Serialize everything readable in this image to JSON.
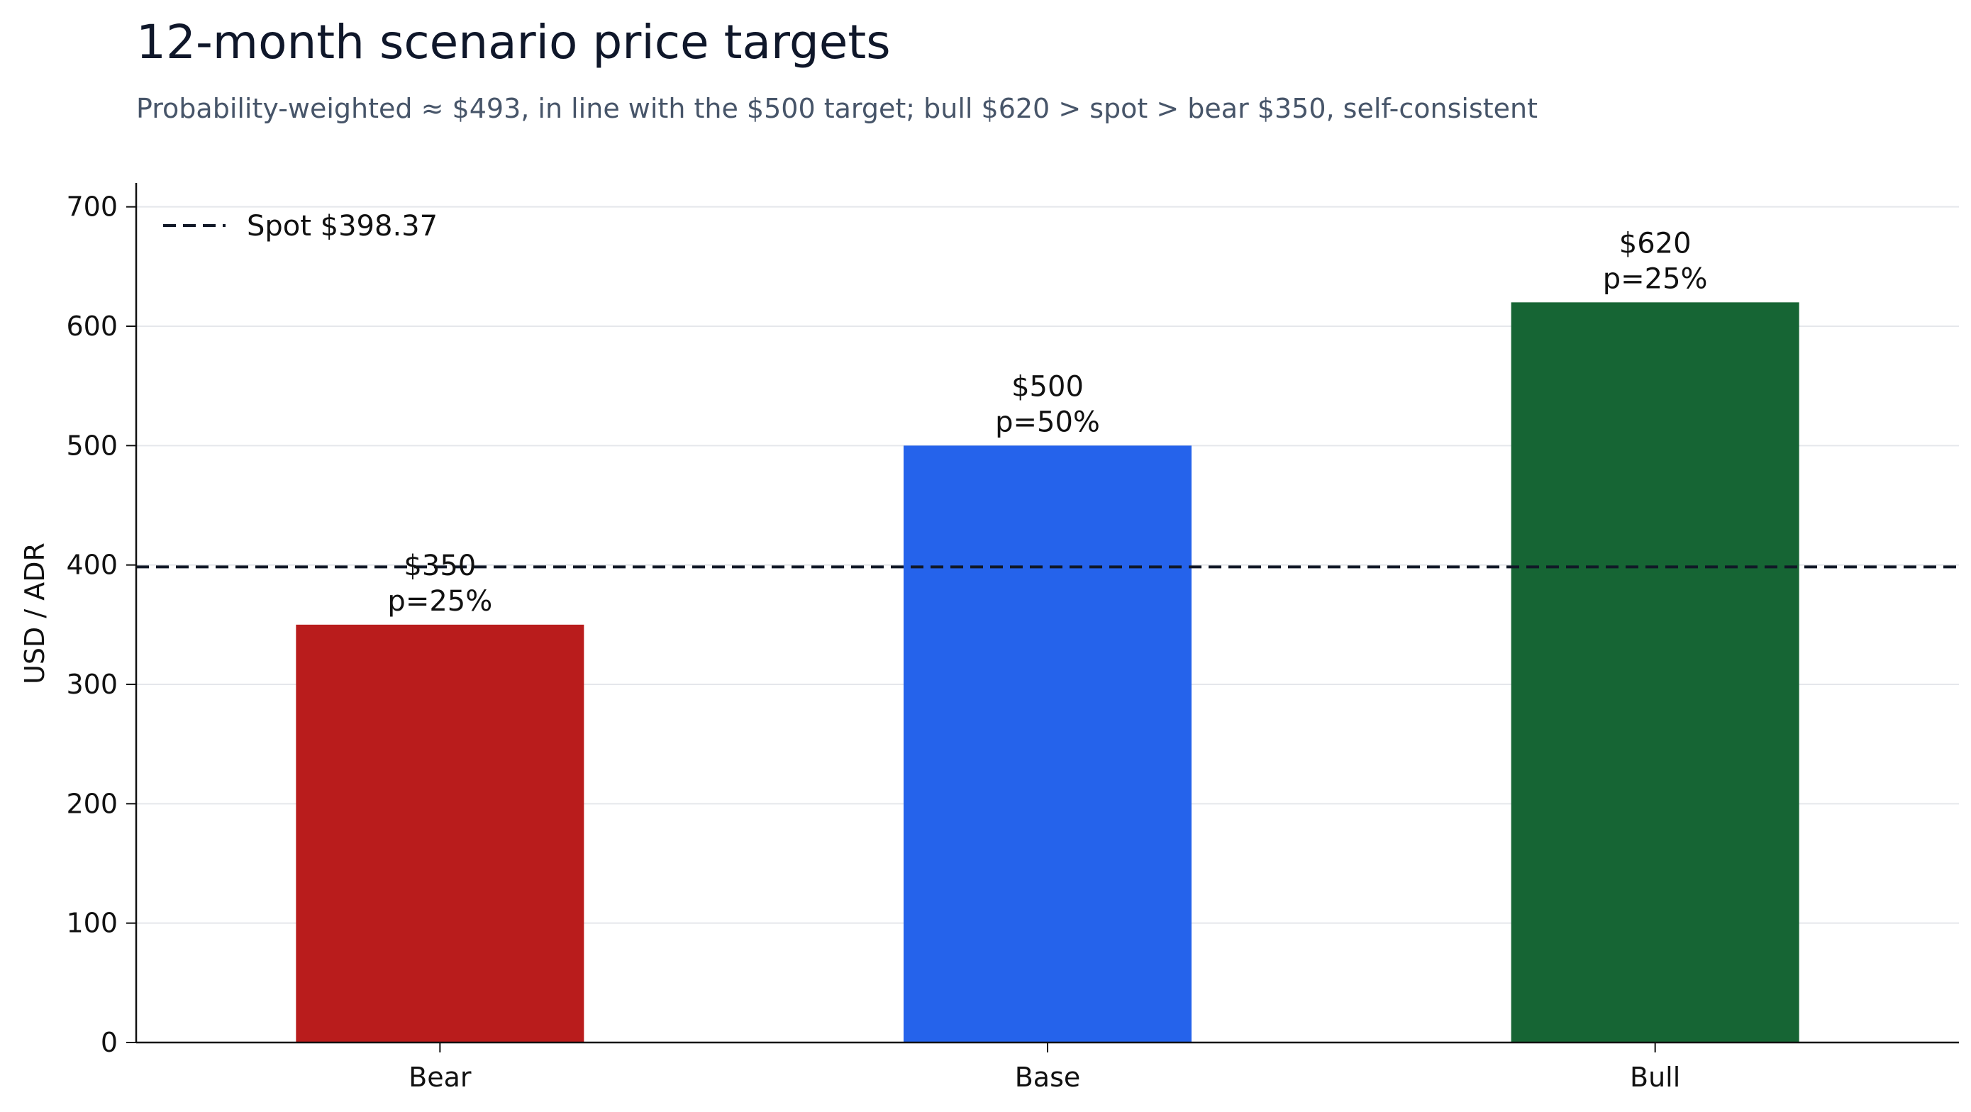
{
  "chart_data": {
    "type": "bar",
    "title": "12-month scenario price targets",
    "subtitle": "Probability-weighted ≈ $493, in line with the $500 target; bull $620 > spot > bear $350, self-consistent",
    "xlabel": "",
    "ylabel": "USD / ADR",
    "categories": [
      "Bear",
      "Base",
      "Bull"
    ],
    "values": [
      350,
      500,
      620
    ],
    "value_labels": [
      "$350",
      "$500",
      "$620"
    ],
    "probability_labels": [
      "p=25%",
      "p=50%",
      "p=25%"
    ],
    "bar_colors": [
      "#b91c1c",
      "#2563eb",
      "#166534"
    ],
    "reference_line": {
      "label": "Spot $398.37",
      "value": 398.37,
      "style": "dashed",
      "color": "#111827"
    },
    "ylim": [
      0,
      720
    ],
    "yticks": [
      0,
      100,
      200,
      300,
      400,
      500,
      600,
      700
    ],
    "grid": "horizontal",
    "legend": "top-left"
  }
}
